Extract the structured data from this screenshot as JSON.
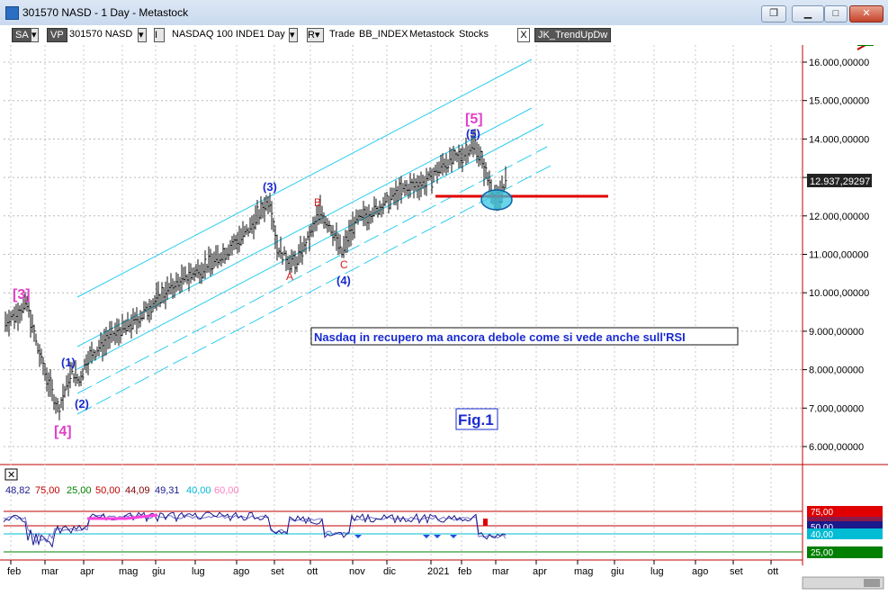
{
  "window": {
    "title": "301570 NASD - 1 Day - Metastock",
    "buttons": [
      "restore",
      "minimize",
      "maximize",
      "close"
    ]
  },
  "toolbar": {
    "sa": "SA",
    "vp": "VP",
    "symbol": "301570 NASD",
    "i_btn": "I",
    "instrument": "NASDAQ 100 INDE",
    "period": "1 Day",
    "r_btn": "R",
    "trade": "Trade",
    "bb": "BB_INDEX",
    "source": "Metastock",
    "stocks": "Stocks",
    "x_btn": "X",
    "indicator": "JK_TrendUpDw"
  },
  "price_axis": {
    "labels": [
      "16.000,00000",
      "15.000,00000",
      "14.000,00000",
      "13.000,00000",
      "12.000,00000",
      "11.000,00000",
      "10.000,00000",
      "9.000,00000",
      "8.000,00000",
      "7.000,00000",
      "6.000,00000"
    ],
    "current": "12.937,29297"
  },
  "time_axis": [
    "feb",
    "mar",
    "apr",
    "mag",
    "giu",
    "lug",
    "ago",
    "set",
    "ott",
    "nov",
    "dic",
    "2021",
    "feb",
    "mar",
    "apr",
    "mag",
    "giu",
    "lug",
    "ago",
    "set",
    "ott"
  ],
  "annotations": {
    "w3_big": "[3]",
    "w4_big": "[4]",
    "w5_big": "[5]",
    "w1": "(1)",
    "w2": "(2)",
    "w3": "(3)",
    "w4": "(4)",
    "w5": "(5)",
    "a": "A",
    "b": "B",
    "c": "C",
    "note": "Nasdaq in recupero ma ancora debole come si vede anche sull'RSI",
    "fig": "Fig.1"
  },
  "rsi": {
    "legend": [
      "48,82",
      "75,00",
      "25,00",
      "50,00",
      "44,09",
      "49,31",
      "40,00",
      "60,00"
    ],
    "legend_colors": [
      "#1a1a8c",
      "#c00000",
      "#008000",
      "#c00000",
      "#800000",
      "#1a1a8c",
      "#00bcd4",
      "#ff80c0"
    ],
    "badges": [
      "75,00",
      "50,00",
      "40,00",
      "25,00"
    ]
  },
  "chart_data": {
    "type": "line",
    "title": "",
    "x": [
      "feb",
      "mar",
      "apr",
      "mag",
      "giu",
      "lug",
      "ago",
      "set",
      "ott",
      "nov",
      "dic",
      "2021",
      "feb",
      "mar"
    ],
    "series": [
      {
        "values": [
          9300,
          8300,
          7900,
          9200,
          9900,
          10600,
          11200,
          11300,
          11600,
          11300,
          12300,
          12800,
          13500,
          12937
        ]
      }
    ],
    "ylim": [
      5500,
      16500
    ],
    "last_value": 12937.29297
  }
}
